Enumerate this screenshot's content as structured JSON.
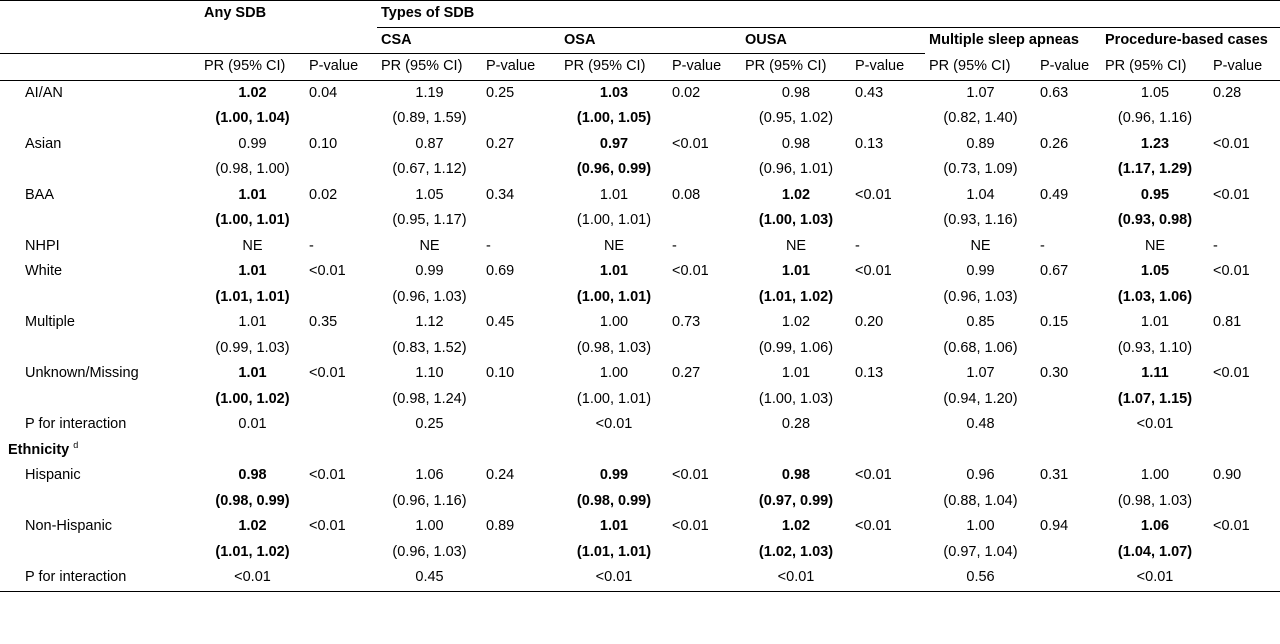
{
  "header": {
    "any_sdb": "Any SDB",
    "types_of_sdb": "Types of SDB",
    "groups": [
      "CSA",
      "OSA",
      "OUSA",
      "Multiple sleep apneas",
      "Procedure-based cases"
    ],
    "pr_labels": [
      "PR (95% CI)",
      "PR (95% CI)",
      "PR (95% CI)",
      "PR (95% CI)",
      "PR (95% CI)",
      "PR (95% CI)"
    ],
    "p_labels": [
      "P-value",
      "P-value",
      "P-value",
      "P-value",
      "P-value",
      "P-value"
    ]
  },
  "race_rows": [
    {
      "label": "AI/AN",
      "cells": [
        {
          "pr": "1.02",
          "ci": "(1.00, 1.04)",
          "bold": true,
          "p": "0.04"
        },
        {
          "pr": "1.19",
          "ci": "(0.89, 1.59)",
          "bold": false,
          "p": "0.25"
        },
        {
          "pr": "1.03",
          "ci": "(1.00, 1.05)",
          "bold": true,
          "p": "0.02"
        },
        {
          "pr": "0.98",
          "ci": "(0.95, 1.02)",
          "bold": false,
          "p": "0.43"
        },
        {
          "pr": "1.07",
          "ci": "(0.82, 1.40)",
          "bold": false,
          "p": "0.63"
        },
        {
          "pr": "1.05",
          "ci": "(0.96, 1.16)",
          "bold": false,
          "p": "0.28"
        }
      ]
    },
    {
      "label": "Asian",
      "cells": [
        {
          "pr": "0.99",
          "ci": "(0.98, 1.00)",
          "bold": false,
          "p": "0.10"
        },
        {
          "pr": "0.87",
          "ci": "(0.67, 1.12)",
          "bold": false,
          "p": "0.27"
        },
        {
          "pr": "0.97",
          "ci": "(0.96, 0.99)",
          "bold": true,
          "p": "<0.01"
        },
        {
          "pr": "0.98",
          "ci": "(0.96, 1.01)",
          "bold": false,
          "p": "0.13"
        },
        {
          "pr": "0.89",
          "ci": "(0.73, 1.09)",
          "bold": false,
          "p": "0.26"
        },
        {
          "pr": "1.23",
          "ci": "(1.17, 1.29)",
          "bold": true,
          "p": "<0.01"
        }
      ]
    },
    {
      "label": "BAA",
      "cells": [
        {
          "pr": "1.01",
          "ci": "(1.00, 1.01)",
          "bold": true,
          "p": "0.02"
        },
        {
          "pr": "1.05",
          "ci": "(0.95, 1.17)",
          "bold": false,
          "p": "0.34"
        },
        {
          "pr": "1.01",
          "ci": "(1.00, 1.01)",
          "bold": false,
          "p": "0.08"
        },
        {
          "pr": "1.02",
          "ci": "(1.00, 1.03)",
          "bold": true,
          "p": "<0.01"
        },
        {
          "pr": "1.04",
          "ci": "(0.93, 1.16)",
          "bold": false,
          "p": "0.49"
        },
        {
          "pr": "0.95",
          "ci": "(0.93, 0.98)",
          "bold": true,
          "p": "<0.01"
        }
      ]
    }
  ],
  "nhpi": {
    "label": "NHPI",
    "cells": [
      {
        "pr": "NE",
        "p": "-"
      },
      {
        "pr": "NE",
        "p": "-"
      },
      {
        "pr": "NE",
        "p": "-"
      },
      {
        "pr": "NE",
        "p": "-"
      },
      {
        "pr": "NE",
        "p": "-"
      },
      {
        "pr": "NE",
        "p": "-"
      }
    ]
  },
  "race_rows2": [
    {
      "label": "White",
      "cells": [
        {
          "pr": "1.01",
          "ci": "(1.01, 1.01)",
          "bold": true,
          "p": "<0.01"
        },
        {
          "pr": "0.99",
          "ci": "(0.96, 1.03)",
          "bold": false,
          "p": "0.69"
        },
        {
          "pr": "1.01",
          "ci": "(1.00, 1.01)",
          "bold": true,
          "p": "<0.01"
        },
        {
          "pr": "1.01",
          "ci": "(1.01, 1.02)",
          "bold": true,
          "p": "<0.01"
        },
        {
          "pr": "0.99",
          "ci": "(0.96, 1.03)",
          "bold": false,
          "p": "0.67"
        },
        {
          "pr": "1.05",
          "ci": "(1.03, 1.06)",
          "bold": true,
          "p": "<0.01"
        }
      ]
    },
    {
      "label": "Multiple",
      "cells": [
        {
          "pr": "1.01",
          "ci": "(0.99, 1.03)",
          "bold": false,
          "p": "0.35"
        },
        {
          "pr": "1.12",
          "ci": "(0.83, 1.52)",
          "bold": false,
          "p": "0.45"
        },
        {
          "pr": "1.00",
          "ci": "(0.98, 1.03)",
          "bold": false,
          "p": "0.73"
        },
        {
          "pr": "1.02",
          "ci": "(0.99, 1.06)",
          "bold": false,
          "p": "0.20"
        },
        {
          "pr": "0.85",
          "ci": "(0.68, 1.06)",
          "bold": false,
          "p": "0.15"
        },
        {
          "pr": "1.01",
          "ci": "(0.93, 1.10)",
          "bold": false,
          "p": "0.81"
        }
      ]
    },
    {
      "label": "Unknown/Missing",
      "cells": [
        {
          "pr": "1.01",
          "ci": "(1.00, 1.02)",
          "bold": true,
          "p": "<0.01"
        },
        {
          "pr": "1.10",
          "ci": "(0.98, 1.24)",
          "bold": false,
          "p": "0.10"
        },
        {
          "pr": "1.00",
          "ci": "(1.00, 1.01)",
          "bold": false,
          "p": "0.27"
        },
        {
          "pr": "1.01",
          "ci": "(1.00, 1.03)",
          "bold": false,
          "p": "0.13"
        },
        {
          "pr": "1.07",
          "ci": "(0.94, 1.20)",
          "bold": false,
          "p": "0.30"
        },
        {
          "pr": "1.11",
          "ci": "(1.07, 1.15)",
          "bold": true,
          "p": "<0.01"
        }
      ]
    }
  ],
  "race_interaction": {
    "label": "P for interaction",
    "values": [
      "0.01",
      "0.25",
      "<0.01",
      "0.28",
      "0.48",
      "<0.01"
    ]
  },
  "ethnicity_heading": "Ethnicity",
  "ethnicity_sup": "d",
  "eth_rows": [
    {
      "label": "Hispanic",
      "cells": [
        {
          "pr": "0.98",
          "ci": "(0.98, 0.99)",
          "bold": true,
          "p": "<0.01"
        },
        {
          "pr": "1.06",
          "ci": "(0.96, 1.16)",
          "bold": false,
          "p": "0.24"
        },
        {
          "pr": "0.99",
          "ci": "(0.98, 0.99)",
          "bold": true,
          "p": "<0.01"
        },
        {
          "pr": "0.98",
          "ci": "(0.97, 0.99)",
          "bold": true,
          "p": "<0.01"
        },
        {
          "pr": "0.96",
          "ci": "(0.88, 1.04)",
          "bold": false,
          "p": "0.31"
        },
        {
          "pr": "1.00",
          "ci": "(0.98, 1.03)",
          "bold": false,
          "p": "0.90"
        }
      ]
    },
    {
      "label": "Non-Hispanic",
      "cells": [
        {
          "pr": "1.02",
          "ci": "(1.01, 1.02)",
          "bold": true,
          "p": "<0.01"
        },
        {
          "pr": "1.00",
          "ci": "(0.96, 1.03)",
          "bold": false,
          "p": "0.89"
        },
        {
          "pr": "1.01",
          "ci": "(1.01, 1.01)",
          "bold": true,
          "p": "<0.01"
        },
        {
          "pr": "1.02",
          "ci": "(1.02, 1.03)",
          "bold": true,
          "p": "<0.01"
        },
        {
          "pr": "1.00",
          "ci": "(0.97, 1.04)",
          "bold": false,
          "p": "0.94"
        },
        {
          "pr": "1.06",
          "ci": "(1.04, 1.07)",
          "bold": true,
          "p": "<0.01"
        }
      ]
    }
  ],
  "eth_interaction": {
    "label": "P for interaction",
    "values": [
      "<0.01",
      "0.45",
      "<0.01",
      "<0.01",
      "0.56",
      "<0.01"
    ]
  }
}
